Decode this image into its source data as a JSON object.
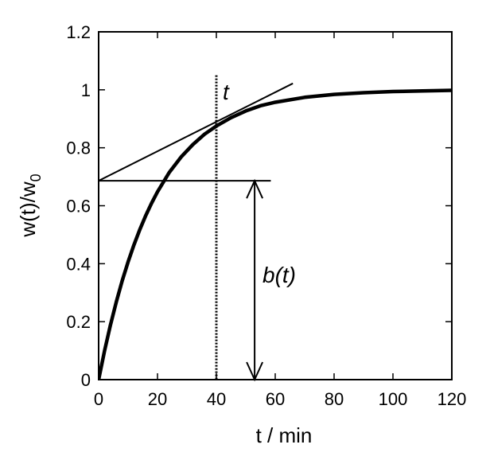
{
  "chart_data": {
    "type": "line",
    "title": "",
    "xlabel": "t / min",
    "ylabel_main": "w(t)/w",
    "ylabel_sub": "0",
    "xlim": [
      0,
      120
    ],
    "ylim": [
      0,
      1.2
    ],
    "x_ticks": [
      0,
      20,
      40,
      60,
      80,
      100,
      120
    ],
    "x_tick_labels": [
      "0",
      "20",
      "40",
      "60",
      "80",
      "100",
      "120"
    ],
    "y_ticks": [
      0,
      0.2,
      0.4,
      0.6,
      0.8,
      1.0,
      1.2
    ],
    "y_tick_labels": [
      "0",
      "0.2",
      "0.4",
      "0.6",
      "0.8",
      "1",
      "1.2"
    ],
    "grid": false,
    "series": [
      {
        "x": [
          0,
          2,
          4,
          6,
          8,
          10,
          12,
          14,
          16,
          18,
          20,
          24,
          28,
          32,
          36,
          40,
          45,
          50,
          55,
          60,
          70,
          80,
          90,
          100,
          110,
          120
        ],
        "y": [
          0,
          0.099,
          0.188,
          0.268,
          0.341,
          0.406,
          0.465,
          0.518,
          0.566,
          0.609,
          0.648,
          0.715,
          0.768,
          0.811,
          0.847,
          0.875,
          0.904,
          0.927,
          0.945,
          0.957,
          0.974,
          0.984,
          0.99,
          0.994,
          0.996,
          0.998
        ]
      }
    ],
    "annotations": {
      "tangent_line": {
        "x": [
          0,
          66
        ],
        "y": [
          0.686,
          1.022
        ]
      },
      "vertical_marker": {
        "x": 40,
        "y_top": 1.05,
        "label": "t"
      },
      "horizontal_line": {
        "x": [
          0,
          58.5
        ],
        "y": 0.686
      },
      "arrow": {
        "x": 53,
        "y_from": 0,
        "y_to": 0.686,
        "label": "b(t)"
      }
    }
  }
}
